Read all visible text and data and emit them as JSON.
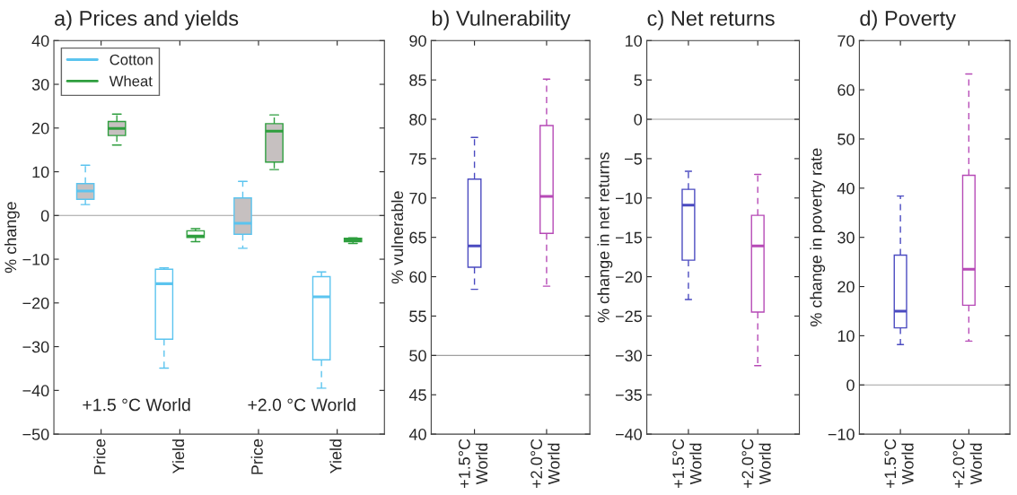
{
  "chart_data": [
    {
      "type": "box",
      "title": "a) Prices and yields",
      "ylabel": "% change",
      "categories": [
        "Price",
        "Yield",
        "Price",
        "Yield"
      ],
      "series": [
        {
          "name": "Cotton",
          "color": "#5bc4ef",
          "colors": [
            "#c6c0c0",
            "#ffffff",
            "#c6c0c0",
            "#ffffff"
          ],
          "boxes": [
            {
              "low": 2.5,
              "q1": 3.7,
              "median": 5.6,
              "q3": 7.3,
              "high": 11.5
            },
            {
              "low": -34.9,
              "q1": -28.3,
              "median": -15.6,
              "q3": -12.3,
              "high": -12.0
            },
            {
              "low": -7.5,
              "q1": -4.3,
              "median": -1.8,
              "q3": 4.0,
              "high": 7.8
            },
            {
              "low": -39.5,
              "q1": -33.0,
              "median": -18.6,
              "q3": -14.0,
              "high": -12.9
            }
          ]
        },
        {
          "name": "Wheat",
          "color": "#2e9e3e",
          "colors": [
            "#c6c0c0",
            "#ffffff",
            "#c6c0c0",
            "#ffffff"
          ],
          "boxes": [
            {
              "low": 16.1,
              "q1": 18.3,
              "median": 19.9,
              "q3": 21.5,
              "high": 23.2
            },
            {
              "low": -6.0,
              "q1": -5.0,
              "median": -4.7,
              "q3": -3.5,
              "high": -3.0
            },
            {
              "low": 10.5,
              "q1": 12.2,
              "median": 19.3,
              "q3": 21.0,
              "high": 23.0
            },
            {
              "low": -6.4,
              "q1": -6.0,
              "median": -5.6,
              "q3": -5.2,
              "high": -5.1
            }
          ]
        }
      ],
      "ylim": [
        -50,
        40
      ],
      "yticks": [
        -50,
        -40,
        -30,
        -20,
        -10,
        0,
        10,
        20,
        30,
        40
      ],
      "ref_lines": [
        {
          "axis": "y",
          "value": 0,
          "color": "#a0a0a0"
        }
      ],
      "annotations": [
        "+1.5 °C World",
        "+2.0 °C World"
      ],
      "legend": "top left",
      "grid": false
    },
    {
      "type": "box",
      "title": "b) Vulnerability",
      "ylabel": "% vulnerable",
      "categories": [
        "+1.5°C\nWorld",
        "+2.0°C\nWorld"
      ],
      "colors": [
        "#4a4ac0",
        "#b64ab6"
      ],
      "boxes": [
        {
          "low": 58.4,
          "q1": 61.2,
          "median": 63.9,
          "q3": 72.4,
          "high": 77.7
        },
        {
          "low": 58.8,
          "q1": 65.5,
          "median": 70.2,
          "q3": 79.2,
          "high": 85.1
        }
      ],
      "ylim": [
        40,
        90
      ],
      "yticks": [
        40,
        45,
        50,
        55,
        60,
        65,
        70,
        75,
        80,
        85,
        90
      ],
      "ref_lines": [
        {
          "axis": "y",
          "value": 50,
          "color": "#a0a0a0"
        }
      ],
      "grid": false
    },
    {
      "type": "box",
      "title": "c) Net returns",
      "ylabel": "% change in net returns",
      "categories": [
        "+1.5°C\nWorld",
        "+2.0°C\nWorld"
      ],
      "colors": [
        "#4a4ac0",
        "#b64ab6"
      ],
      "boxes": [
        {
          "low": -22.9,
          "q1": -17.9,
          "median": -10.9,
          "q3": -8.9,
          "high": -6.6
        },
        {
          "low": -31.3,
          "q1": -24.5,
          "median": -16.1,
          "q3": -12.2,
          "high": -7.0
        }
      ],
      "ylim": [
        -40,
        10
      ],
      "yticks": [
        -40,
        -35,
        -30,
        -25,
        -20,
        -15,
        -10,
        -5,
        0,
        5,
        10
      ],
      "ref_lines": [
        {
          "axis": "y",
          "value": 0,
          "color": "#a0a0a0"
        }
      ],
      "grid": false
    },
    {
      "type": "box",
      "title": "d) Poverty",
      "ylabel": "% change in poverty rate",
      "categories": [
        "+1.5°C\nWorld",
        "+2.0°C\nWorld"
      ],
      "colors": [
        "#4a4ac0",
        "#b64ab6"
      ],
      "boxes": [
        {
          "low": 8.2,
          "q1": 11.6,
          "median": 15.0,
          "q3": 26.4,
          "high": 38.4
        },
        {
          "low": 8.9,
          "q1": 16.2,
          "median": 23.5,
          "q3": 42.6,
          "high": 63.2
        }
      ],
      "ylim": [
        -10,
        70
      ],
      "yticks": [
        -10,
        0,
        10,
        20,
        30,
        40,
        50,
        60,
        70
      ],
      "ref_lines": [
        {
          "axis": "y",
          "value": 0,
          "color": "#a0a0a0"
        }
      ],
      "grid": false
    }
  ]
}
